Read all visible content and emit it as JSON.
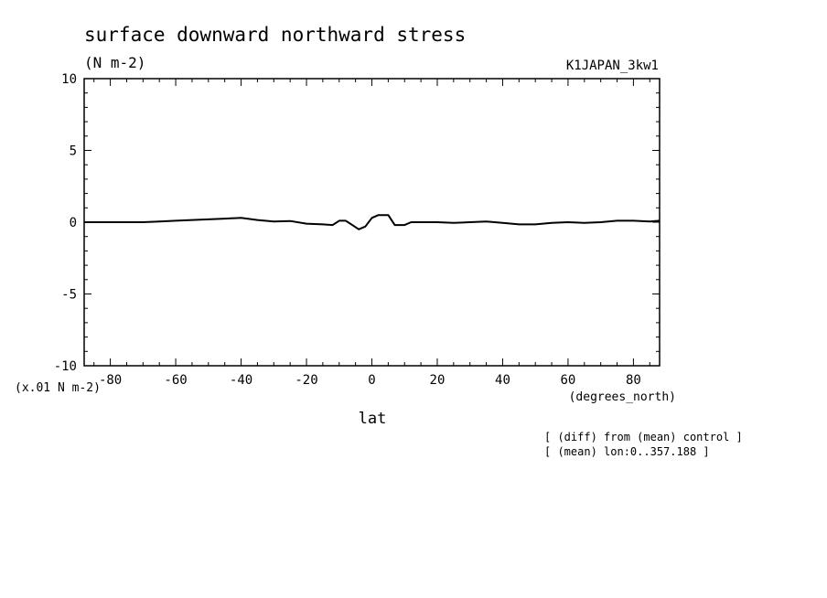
{
  "chart_data": {
    "type": "line",
    "title": "surface downward northward stress",
    "units": "(N m-2)",
    "dataset": "K1JAPAN_3kw1",
    "scale_note": "(x.01 N m-2)",
    "xlabel": "lat",
    "xunits": "(degrees_north)",
    "xlim": [
      -88,
      88
    ],
    "ylim": [
      -10,
      10
    ],
    "xticks": [
      -80,
      -60,
      -40,
      -20,
      0,
      20,
      40,
      60,
      80
    ],
    "xtick_labels": [
      "-80",
      "-60",
      "-40",
      "-20",
      "0",
      "20",
      "40",
      "60",
      "80"
    ],
    "yticks": [
      -10,
      -5,
      0,
      5,
      10
    ],
    "ytick_labels": [
      "-10",
      "-5",
      "0",
      "5",
      "10"
    ],
    "notes": [
      "[ (diff) from (mean) control ]",
      "[ (mean) lon:0..357.188 ]"
    ],
    "grid": false,
    "series": [
      {
        "x": [
          -88,
          -80,
          -70,
          -65,
          -60,
          -55,
          -50,
          -45,
          -40,
          -35,
          -30,
          -25,
          -20,
          -15,
          -12,
          -10,
          -8,
          -6,
          -4,
          -2,
          0,
          2,
          5,
          7,
          10,
          12,
          15,
          20,
          25,
          30,
          35,
          40,
          45,
          50,
          55,
          60,
          65,
          70,
          75,
          80,
          85,
          88
        ],
        "y": [
          0,
          0,
          0,
          0.05,
          0.1,
          0.15,
          0.2,
          0.25,
          0.3,
          0.15,
          0.05,
          0.08,
          -0.1,
          -0.15,
          -0.2,
          0.1,
          0.1,
          -0.2,
          -0.5,
          -0.3,
          0.3,
          0.5,
          0.5,
          -0.2,
          -0.2,
          0,
          0,
          0,
          -0.05,
          0,
          0.05,
          -0.05,
          -0.15,
          -0.15,
          -0.05,
          0,
          -0.05,
          0,
          0.1,
          0.1,
          0.05,
          0.1
        ],
        "color": "#000000"
      }
    ]
  }
}
